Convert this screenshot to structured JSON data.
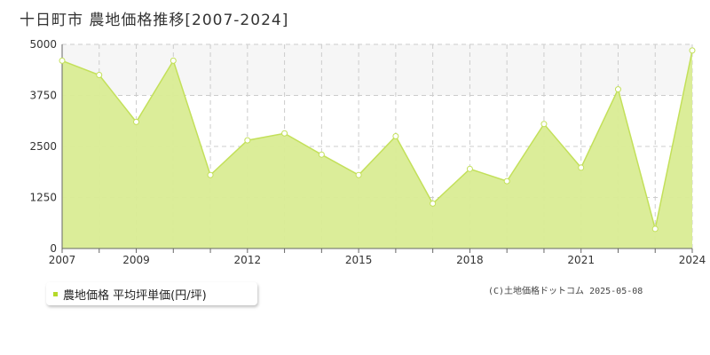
{
  "title": "十日町市 農地価格推移[2007-2024]",
  "legend": {
    "label": "農地価格 平均坪単価(円/坪)"
  },
  "copyright": "(C)土地価格ドットコム 2025-05-08",
  "colors": {
    "fill": "#d9ec94",
    "line": "#c3e05a",
    "point_fill": "#ffffff",
    "band": "#f6f6f6",
    "grid": "#cccccc",
    "axis": "#666666",
    "legend_swatch": "#b5d92a"
  },
  "chart_data": {
    "type": "area",
    "title": "十日町市 農地価格推移[2007-2024]",
    "xlabel": "",
    "ylabel": "",
    "x": [
      2007,
      2008,
      2009,
      2010,
      2011,
      2012,
      2013,
      2014,
      2015,
      2016,
      2017,
      2018,
      2019,
      2020,
      2021,
      2022,
      2023,
      2024
    ],
    "series": [
      {
        "name": "農地価格 平均坪単価(円/坪)",
        "values": [
          4600,
          4250,
          3100,
          4600,
          1800,
          2650,
          2820,
          2300,
          1800,
          2750,
          1100,
          1950,
          1650,
          3050,
          1980,
          3900,
          480,
          4850
        ]
      }
    ],
    "xlim": [
      2007,
      2024
    ],
    "ylim": [
      0,
      5000
    ],
    "x_ticks": [
      "2007",
      "2009",
      "2012",
      "2015",
      "2018",
      "2021",
      "2024"
    ],
    "y_ticks": [
      "0",
      "1250",
      "2500",
      "3750",
      "5000"
    ],
    "grid": true,
    "legend_position": "bottom-left"
  }
}
